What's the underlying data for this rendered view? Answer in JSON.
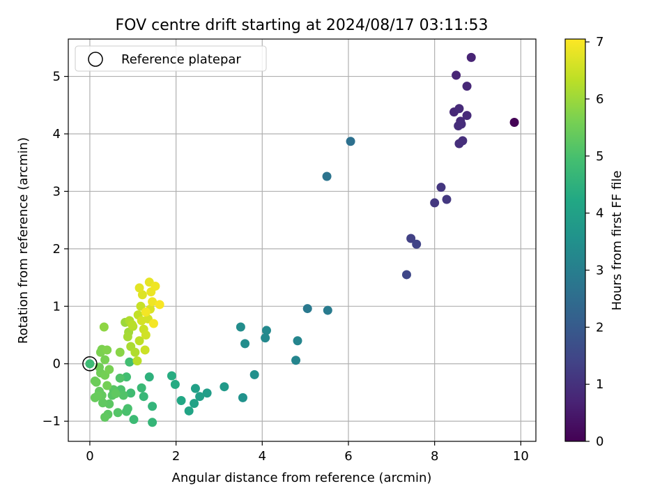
{
  "chart_data": {
    "type": "scatter",
    "title": "FOV centre drift starting at 2024/08/17 03:11:53",
    "xlabel": "Angular distance from reference (arcmin)",
    "ylabel": "Rotation from reference (arcmin)",
    "xlim": [
      -0.5,
      10.35
    ],
    "ylim": [
      -1.35,
      5.65
    ],
    "xticks": [
      0,
      2,
      4,
      6,
      8,
      10
    ],
    "yticks": [
      -1,
      0,
      1,
      2,
      3,
      4,
      5
    ],
    "grid": true,
    "legend": {
      "placement": "top-left",
      "entries": [
        "Reference platepar"
      ]
    },
    "reference_point": {
      "x": 0,
      "y": 0
    },
    "colorbar": {
      "label": "Hours from first FF file",
      "colormap": "viridis",
      "range": [
        0,
        7.05
      ],
      "ticks": [
        0,
        1,
        2,
        3,
        4,
        5,
        6,
        7
      ]
    },
    "points": [
      {
        "x": 9.85,
        "y": 4.2,
        "c": 0.05
      },
      {
        "x": 8.85,
        "y": 5.33,
        "c": 0.7
      },
      {
        "x": 8.5,
        "y": 5.02,
        "c": 0.75
      },
      {
        "x": 8.75,
        "y": 4.83,
        "c": 0.8
      },
      {
        "x": 8.45,
        "y": 4.38,
        "c": 0.8
      },
      {
        "x": 8.57,
        "y": 4.44,
        "c": 0.85
      },
      {
        "x": 8.75,
        "y": 4.32,
        "c": 0.85
      },
      {
        "x": 8.6,
        "y": 4.22,
        "c": 0.85
      },
      {
        "x": 8.55,
        "y": 4.14,
        "c": 0.9
      },
      {
        "x": 8.62,
        "y": 4.17,
        "c": 0.9
      },
      {
        "x": 8.65,
        "y": 3.88,
        "c": 0.95
      },
      {
        "x": 8.57,
        "y": 3.83,
        "c": 0.95
      },
      {
        "x": 8.15,
        "y": 3.07,
        "c": 1.1
      },
      {
        "x": 8.28,
        "y": 2.86,
        "c": 1.15
      },
      {
        "x": 8.0,
        "y": 2.8,
        "c": 1.15
      },
      {
        "x": 7.45,
        "y": 2.18,
        "c": 1.35
      },
      {
        "x": 7.58,
        "y": 2.08,
        "c": 1.4
      },
      {
        "x": 7.35,
        "y": 1.55,
        "c": 1.5
      },
      {
        "x": 6.05,
        "y": 3.87,
        "c": 2.6
      },
      {
        "x": 5.5,
        "y": 3.26,
        "c": 2.7
      },
      {
        "x": 5.05,
        "y": 0.96,
        "c": 2.85
      },
      {
        "x": 5.52,
        "y": 0.93,
        "c": 2.9
      },
      {
        "x": 4.82,
        "y": 0.4,
        "c": 3.2
      },
      {
        "x": 4.78,
        "y": 0.06,
        "c": 3.2
      },
      {
        "x": 4.1,
        "y": 0.58,
        "c": 3.3
      },
      {
        "x": 4.07,
        "y": 0.45,
        "c": 3.3
      },
      {
        "x": 3.5,
        "y": 0.64,
        "c": 3.4
      },
      {
        "x": 3.6,
        "y": 0.35,
        "c": 3.4
      },
      {
        "x": 3.82,
        "y": -0.19,
        "c": 3.5
      },
      {
        "x": 3.55,
        "y": -0.59,
        "c": 3.55
      },
      {
        "x": 3.12,
        "y": -0.4,
        "c": 3.8
      },
      {
        "x": 2.72,
        "y": -0.51,
        "c": 3.9
      },
      {
        "x": 2.55,
        "y": -0.57,
        "c": 3.95
      },
      {
        "x": 2.45,
        "y": -0.43,
        "c": 4.0
      },
      {
        "x": 2.42,
        "y": -0.69,
        "c": 4.05
      },
      {
        "x": 2.3,
        "y": -0.82,
        "c": 4.1
      },
      {
        "x": 2.12,
        "y": -0.64,
        "c": 4.2
      },
      {
        "x": 1.98,
        "y": -0.36,
        "c": 4.3
      },
      {
        "x": 1.9,
        "y": -0.21,
        "c": 4.35
      },
      {
        "x": 1.38,
        "y": -0.23,
        "c": 4.5
      },
      {
        "x": 1.45,
        "y": -0.74,
        "c": 4.6
      },
      {
        "x": 1.45,
        "y": -1.02,
        "c": 4.65
      },
      {
        "x": 1.25,
        "y": -0.57,
        "c": 4.7
      },
      {
        "x": 1.2,
        "y": -0.42,
        "c": 4.75
      },
      {
        "x": 1.02,
        "y": -0.97,
        "c": 4.8
      },
      {
        "x": 0.95,
        "y": -0.51,
        "c": 4.85
      },
      {
        "x": 0.92,
        "y": 0.03,
        "c": 4.9
      },
      {
        "x": 0.85,
        "y": -0.23,
        "c": 4.9
      },
      {
        "x": 0.88,
        "y": -0.78,
        "c": 5.0
      },
      {
        "x": 0.85,
        "y": -0.83,
        "c": 5.0
      },
      {
        "x": 0.72,
        "y": -0.45,
        "c": 5.05
      },
      {
        "x": 0.78,
        "y": -0.55,
        "c": 5.1
      },
      {
        "x": 0.7,
        "y": -0.25,
        "c": 5.1
      },
      {
        "x": 0.65,
        "y": -0.85,
        "c": 5.15
      },
      {
        "x": 0.55,
        "y": -0.45,
        "c": 5.2
      },
      {
        "x": 0.52,
        "y": -0.55,
        "c": 5.2
      },
      {
        "x": 0.45,
        "y": -0.7,
        "c": 5.25
      },
      {
        "x": 0.42,
        "y": -0.88,
        "c": 5.25
      },
      {
        "x": 0.35,
        "y": -0.93,
        "c": 5.3
      },
      {
        "x": 0.3,
        "y": -0.68,
        "c": 5.3
      },
      {
        "x": 0.28,
        "y": -0.55,
        "c": 5.35
      },
      {
        "x": 0.22,
        "y": -0.48,
        "c": 5.35
      },
      {
        "x": 0.18,
        "y": -0.56,
        "c": 5.4
      },
      {
        "x": 0.12,
        "y": -0.59,
        "c": 5.4
      },
      {
        "x": 0.15,
        "y": -0.32,
        "c": 5.45
      },
      {
        "x": 0.12,
        "y": -0.3,
        "c": 5.45
      },
      {
        "x": 0.25,
        "y": -0.16,
        "c": 5.5
      },
      {
        "x": 0.22,
        "y": -0.06,
        "c": 5.5
      },
      {
        "x": 0.35,
        "y": -0.2,
        "c": 5.55
      },
      {
        "x": 0.4,
        "y": -0.38,
        "c": 5.55
      },
      {
        "x": 0.45,
        "y": -0.1,
        "c": 5.6
      },
      {
        "x": 0.35,
        "y": 0.07,
        "c": 5.6
      },
      {
        "x": 0.25,
        "y": 0.2,
        "c": 5.65
      },
      {
        "x": 0.28,
        "y": 0.25,
        "c": 5.65
      },
      {
        "x": 0.4,
        "y": 0.24,
        "c": 5.7
      },
      {
        "x": 0.33,
        "y": 0.64,
        "c": 5.85
      },
      {
        "x": 0.7,
        "y": 0.2,
        "c": 5.8
      },
      {
        "x": 0.6,
        "y": -0.52,
        "c": 5.3
      },
      {
        "x": 0.82,
        "y": 0.72,
        "c": 6.0
      },
      {
        "x": 0.9,
        "y": 0.55,
        "c": 6.05
      },
      {
        "x": 0.88,
        "y": 0.47,
        "c": 6.1
      },
      {
        "x": 0.95,
        "y": 0.3,
        "c": 6.15
      },
      {
        "x": 1.05,
        "y": 0.2,
        "c": 6.2
      },
      {
        "x": 0.92,
        "y": 0.75,
        "c": 6.2
      },
      {
        "x": 1.0,
        "y": 0.65,
        "c": 6.25
      },
      {
        "x": 1.1,
        "y": 0.05,
        "c": 6.3
      },
      {
        "x": 1.15,
        "y": 0.4,
        "c": 6.35
      },
      {
        "x": 1.12,
        "y": 0.85,
        "c": 6.4
      },
      {
        "x": 1.18,
        "y": 1.0,
        "c": 6.45
      },
      {
        "x": 1.25,
        "y": 0.6,
        "c": 6.5
      },
      {
        "x": 1.28,
        "y": 0.24,
        "c": 6.5
      },
      {
        "x": 1.3,
        "y": 0.5,
        "c": 6.55
      },
      {
        "x": 1.35,
        "y": 0.78,
        "c": 6.6
      },
      {
        "x": 1.4,
        "y": 0.95,
        "c": 6.65
      },
      {
        "x": 1.22,
        "y": 1.2,
        "c": 6.7
      },
      {
        "x": 1.15,
        "y": 1.32,
        "c": 6.75
      },
      {
        "x": 1.38,
        "y": 1.42,
        "c": 6.8
      },
      {
        "x": 1.42,
        "y": 1.25,
        "c": 6.85
      },
      {
        "x": 1.52,
        "y": 1.35,
        "c": 6.9
      },
      {
        "x": 1.45,
        "y": 1.08,
        "c": 6.9
      },
      {
        "x": 1.48,
        "y": 0.7,
        "c": 6.95
      },
      {
        "x": 1.62,
        "y": 1.03,
        "c": 7.0
      },
      {
        "x": 1.3,
        "y": 0.9,
        "c": 6.95
      },
      {
        "x": 1.2,
        "y": 0.75,
        "c": 6.6
      },
      {
        "x": 0.98,
        "y": 0.68,
        "c": 6.3
      }
    ]
  }
}
